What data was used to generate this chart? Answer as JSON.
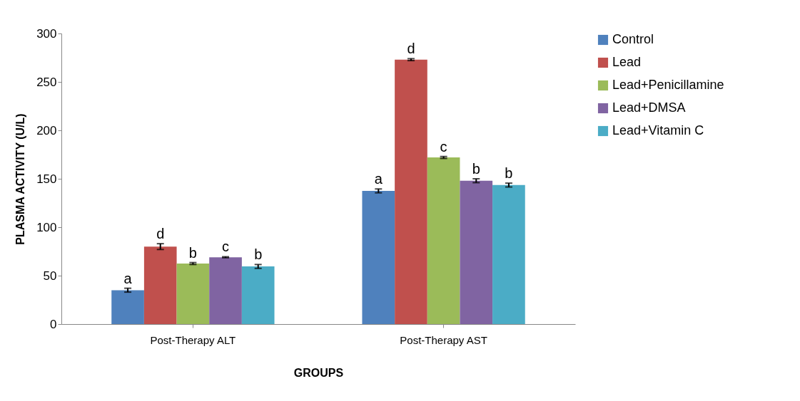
{
  "chart_data": {
    "type": "bar",
    "xlabel": "GROUPS",
    "ylabel": "PLASMA ACTIVITY (U/L)",
    "categories": [
      "Post-Therapy  ALT",
      "Post-Therapy  AST"
    ],
    "series": [
      {
        "name": "Control",
        "color": "#4f81bd",
        "values": [
          35,
          137.5
        ],
        "errors": [
          2,
          2
        ],
        "value_labels": [
          "a",
          "a"
        ]
      },
      {
        "name": "Lead",
        "color": "#c0504d",
        "values": [
          80,
          273
        ],
        "errors": [
          3,
          1
        ],
        "value_labels": [
          "d",
          "d"
        ]
      },
      {
        "name": "Lead+Penicillamine",
        "color": "#9bbb59",
        "values": [
          62.5,
          172
        ],
        "errors": [
          1,
          1
        ],
        "value_labels": [
          "b",
          "c"
        ]
      },
      {
        "name": "Lead+DMSA",
        "color": "#8064a2",
        "values": [
          69,
          148
        ],
        "errors": [
          0.5,
          2
        ],
        "value_labels": [
          "c",
          "b"
        ]
      },
      {
        "name": "Lead+Vitamin C",
        "color": "#4bacc6",
        "values": [
          59.5,
          143.5
        ],
        "errors": [
          2,
          2
        ],
        "value_labels": [
          "b",
          "b"
        ]
      }
    ],
    "ylim": [
      0,
      300
    ],
    "yticks": [
      0,
      50,
      100,
      150,
      200,
      250,
      300
    ],
    "grid": false,
    "legend": "right"
  }
}
